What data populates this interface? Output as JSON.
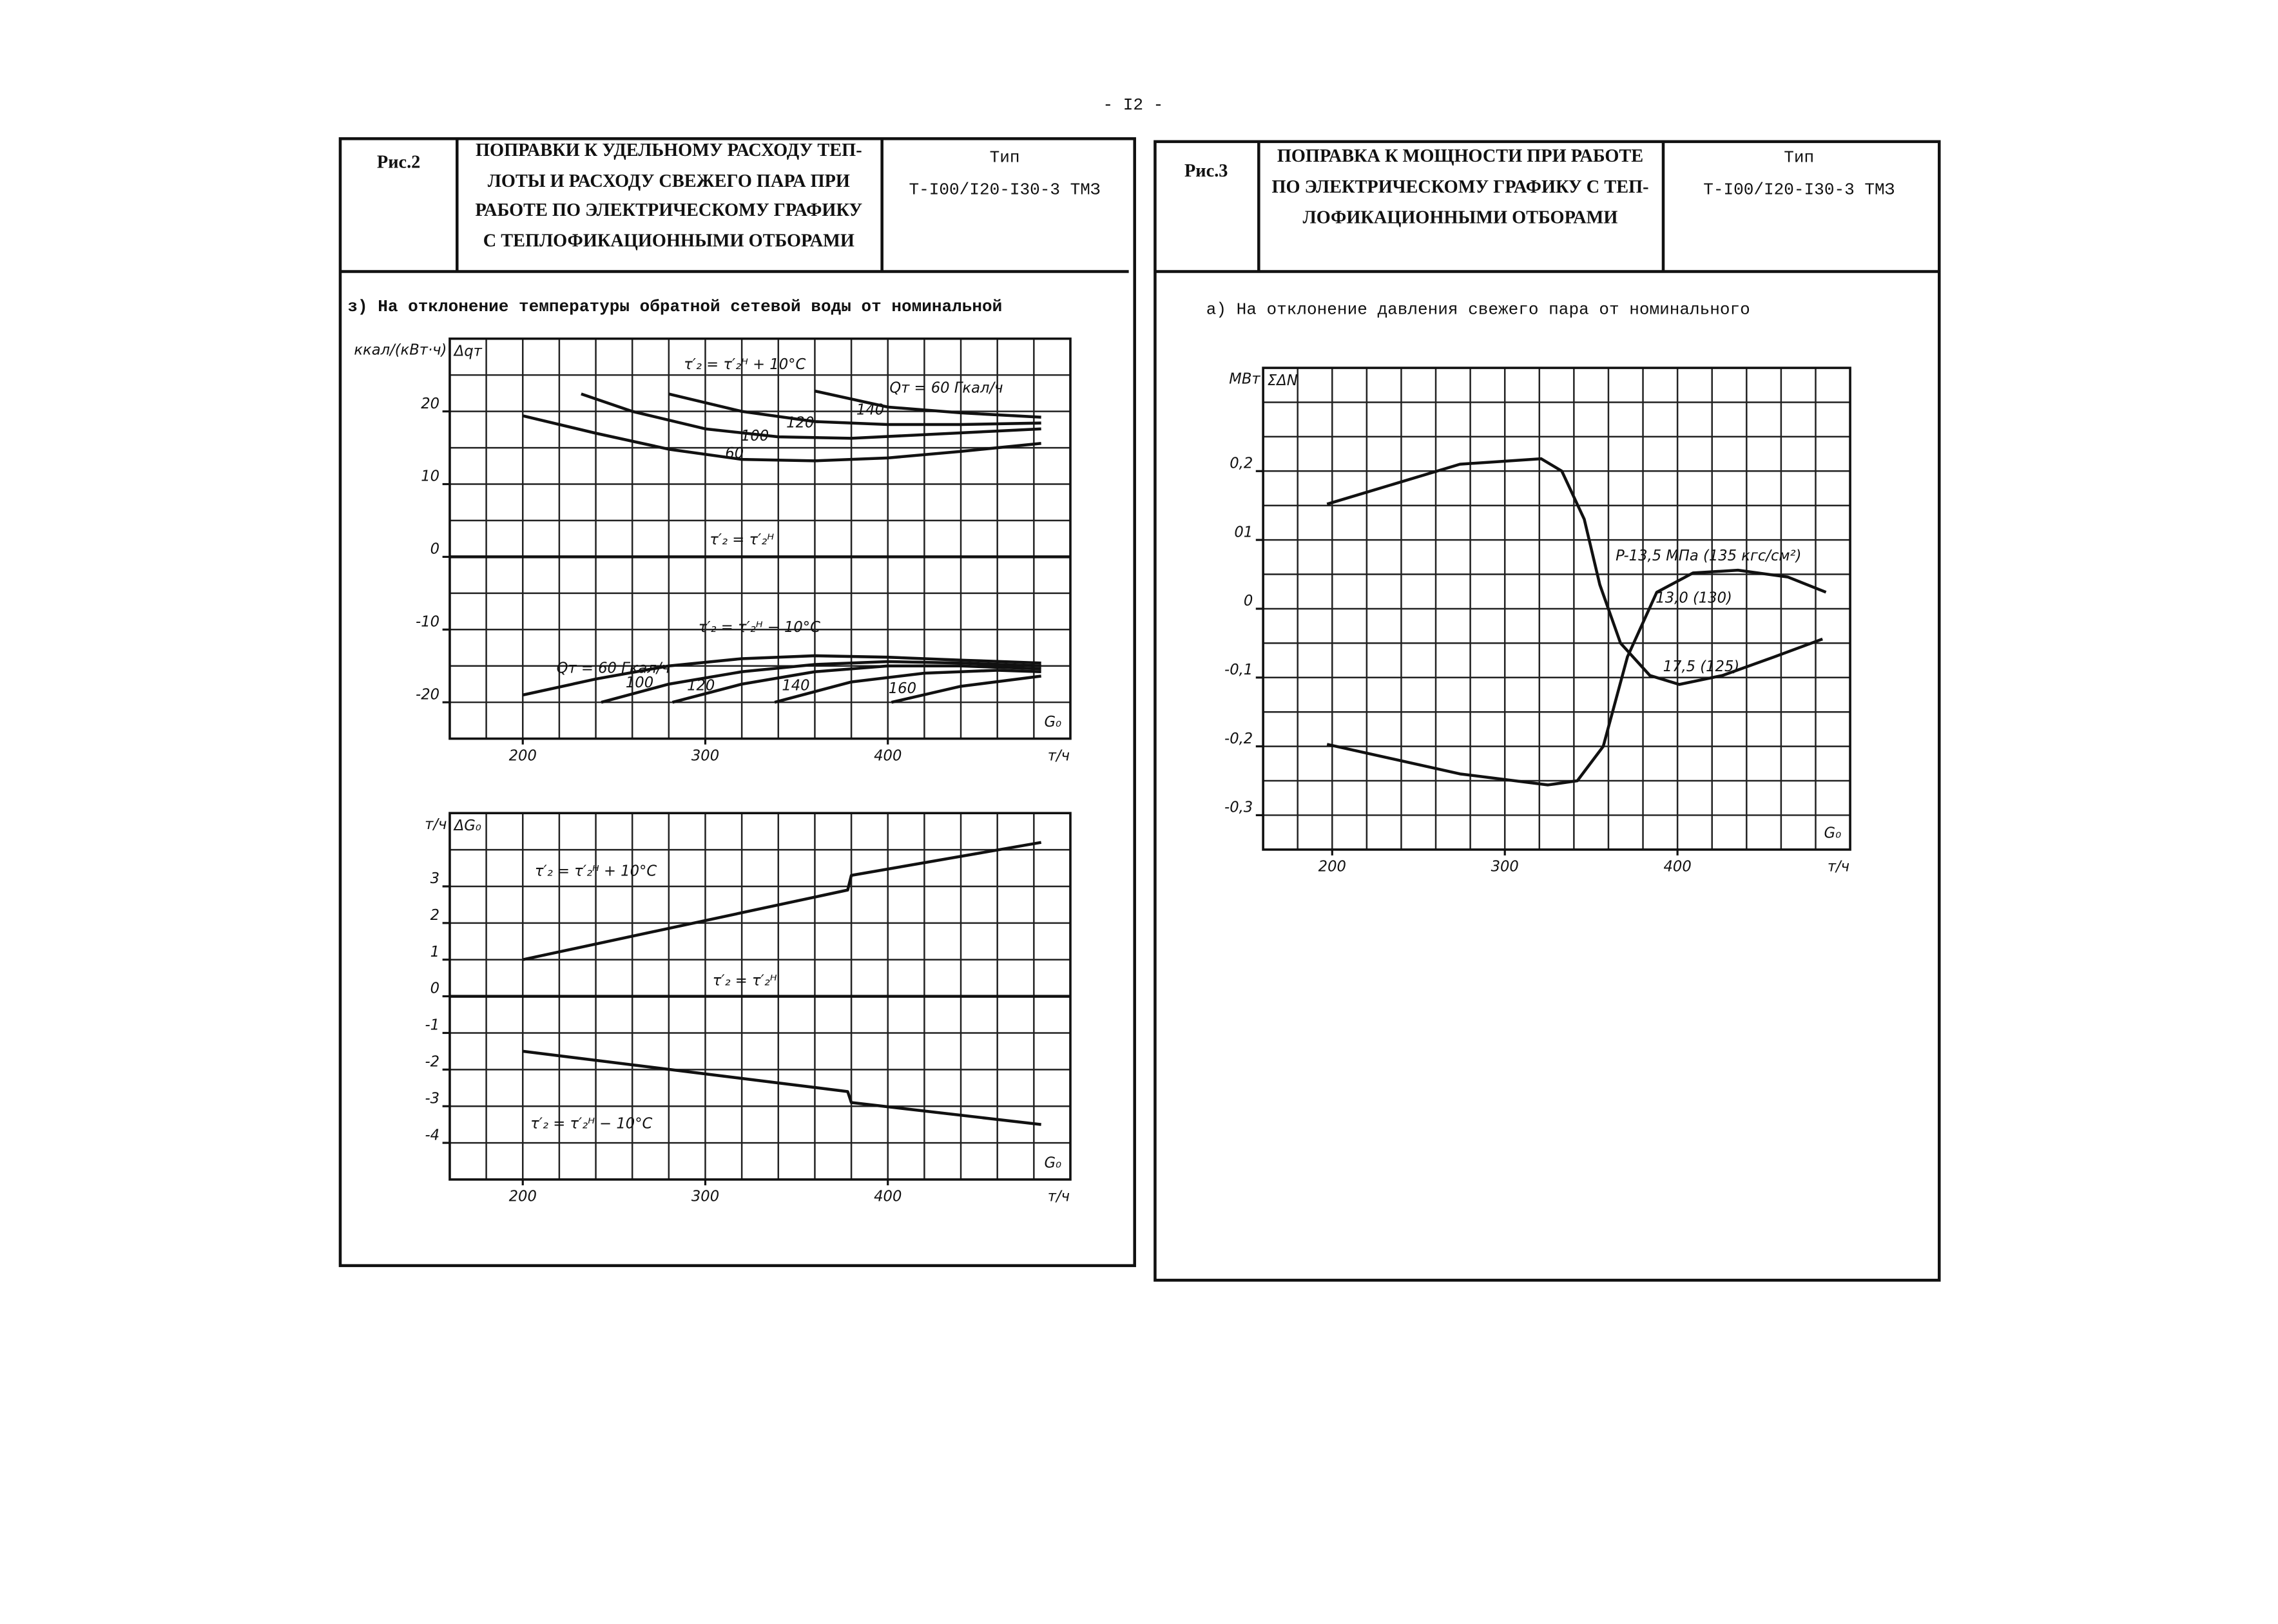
{
  "page_number": "- I2 -",
  "panels": [
    {
      "label": "Рис.2",
      "title": [
        "ПОПРАВКИ К УДЕЛЬНОМУ РАСХОДУ ТЕП-",
        "ЛОТЫ И РАСХОДУ СВЕЖЕГО ПАРА ПРИ",
        "РАБОТЕ ПО ЭЛЕКТРИЧЕСКОМУ ГРАФИКУ",
        "С ТЕПЛОФИКАЦИОННЫМИ ОТБОРАМИ"
      ],
      "type_label": "Тип",
      "type_value": "Т-I00/I20-I30-3 ТМЗ",
      "subtitle": "з) На отклонение температуры обратной сетевой воды от номинальной"
    },
    {
      "label": "Рис.3",
      "title": [
        "ПОПРАВКА К МОЩНОСТИ ПРИ РАБОТЕ",
        "ПО ЭЛЕКТРИЧЕСКОМУ ГРАФИКУ С ТЕП-",
        "ЛОФИКАЦИОННЫМИ ОТБОРАМИ"
      ],
      "type_label": "Тип",
      "type_value": "Т-I00/I20-I30-3 ТМЗ",
      "subtitle": "а) На отклонение давления свежего пара от номинального"
    }
  ],
  "chart_data": [
    {
      "type": "line",
      "ylabel": "Δqт",
      "yunit": "ккал/(кВт·ч)",
      "xlabel": "G₀",
      "xunit": "т/ч",
      "xlim": [
        160,
        500
      ],
      "ylim": [
        -25,
        30
      ],
      "xticks": [
        200,
        300,
        400
      ],
      "yticks": [
        20,
        10,
        0,
        -10,
        -20
      ],
      "grid": true,
      "xgrid": [
        160,
        180,
        200,
        220,
        240,
        260,
        280,
        300,
        320,
        340,
        360,
        380,
        400,
        420,
        440,
        460,
        480,
        500
      ],
      "ygrid": [
        -25,
        -20,
        -15,
        -10,
        -5,
        0,
        5,
        10,
        15,
        20,
        25,
        30
      ],
      "annotations": [
        "τ′₂ = τ′₂ᴴ + 10°C",
        "Qт = 60 Гкал/ч",
        "τ′₂ = τ′₂ᴴ − 10°C"
      ],
      "series": [
        {
          "name": "60",
          "color": "#111111",
          "x": [
            200,
            240,
            280,
            320,
            360,
            400,
            440,
            484
          ],
          "values": [
            19.4,
            17,
            14.8,
            13.4,
            13.2,
            13.6,
            14.5,
            15.6
          ]
        },
        {
          "name": "100",
          "color": "#111111",
          "x": [
            232,
            260,
            300,
            340,
            380,
            420,
            460,
            484
          ],
          "values": [
            22.4,
            20,
            17.6,
            16.5,
            16.3,
            16.8,
            17.3,
            17.6
          ]
        },
        {
          "name": "120",
          "color": "#111111",
          "x": [
            280,
            320,
            360,
            400,
            440,
            484
          ],
          "values": [
            22.4,
            20,
            18.6,
            18.2,
            18.2,
            18.4
          ]
        },
        {
          "name": "140",
          "color": "#111111",
          "x": [
            360,
            400,
            440,
            484
          ],
          "values": [
            22.8,
            20.6,
            19.8,
            19.2
          ]
        },
        {
          "name": "τ′₂ = τ′₂ᴴ",
          "color": "#111111",
          "x": [
            160,
            500
          ],
          "values": [
            0,
            0
          ]
        },
        {
          "name": "Qт = 60 Гкал/ч",
          "color": "#111111",
          "x": [
            200,
            240,
            280,
            320,
            360,
            400,
            440,
            484
          ],
          "values": [
            -19,
            -16.8,
            -15,
            -14,
            -13.6,
            -13.8,
            -14.2,
            -14.6
          ]
        },
        {
          "name": "100",
          "color": "#111111",
          "x": [
            243,
            280,
            320,
            360,
            400,
            440,
            484
          ],
          "values": [
            -20,
            -17.5,
            -15.8,
            -14.8,
            -14.4,
            -14.6,
            -15
          ]
        },
        {
          "name": "120",
          "color": "#111111",
          "x": [
            282,
            320,
            360,
            400,
            440,
            484
          ],
          "values": [
            -20,
            -17.5,
            -15.8,
            -15,
            -15,
            -15.4
          ]
        },
        {
          "name": "140",
          "color": "#111111",
          "x": [
            338,
            380,
            420,
            460,
            484
          ],
          "values": [
            -20,
            -17.2,
            -16,
            -15.6,
            -15.8
          ]
        },
        {
          "name": "160",
          "color": "#111111",
          "x": [
            402,
            440,
            484
          ],
          "values": [
            -20,
            -17.8,
            -16.4
          ]
        }
      ]
    },
    {
      "type": "line",
      "ylabel": "ΔG₀",
      "yunit": "т/ч",
      "xlabel": "G₀",
      "xunit": "т/ч",
      "xlim": [
        160,
        500
      ],
      "ylim": [
        -5,
        5
      ],
      "xticks": [
        200,
        300,
        400
      ],
      "yticks": [
        3,
        2,
        1,
        0,
        -1,
        -2,
        -3,
        -4
      ],
      "grid": true,
      "xgrid": [
        160,
        180,
        200,
        220,
        240,
        260,
        280,
        300,
        320,
        340,
        360,
        380,
        400,
        420,
        440,
        460,
        480,
        500
      ],
      "ygrid": [
        -5,
        -4,
        -3,
        -2,
        -1,
        0,
        1,
        2,
        3,
        4,
        5
      ],
      "series": [
        {
          "name": "τ′₂ = τ′₂ᴴ + 10°C",
          "color": "#111111",
          "x": [
            200,
            378,
            380,
            484
          ],
          "values": [
            1.0,
            2.9,
            3.3,
            4.2
          ]
        },
        {
          "name": "τ′₂ = τ′₂ᴴ",
          "color": "#111111",
          "x": [
            160,
            500
          ],
          "values": [
            0,
            0
          ]
        },
        {
          "name": "τ′₂ = τ′₂ᴴ − 10°C",
          "color": "#111111",
          "x": [
            200,
            378,
            380,
            484
          ],
          "values": [
            -1.5,
            -2.6,
            -2.9,
            -3.5
          ]
        }
      ]
    },
    {
      "type": "line",
      "ylabel": "ΣΔN",
      "yunit": "МВт",
      "xlabel": "G₀",
      "xunit": "т/ч",
      "xlim": [
        160,
        500
      ],
      "ylim": [
        -0.35,
        0.35
      ],
      "xticks": [
        200,
        300,
        400
      ],
      "yticks": [
        {
          "value": 0.2,
          "label": "0,2"
        },
        {
          "value": 0.1,
          "label": "01"
        },
        0,
        {
          "value": -0.1,
          "label": "-0,1"
        },
        {
          "value": -0.2,
          "label": "-0,2"
        },
        {
          "value": -0.3,
          "label": "-0,3"
        }
      ],
      "grid": true,
      "xgrid": [
        160,
        180,
        200,
        220,
        240,
        260,
        280,
        300,
        320,
        340,
        360,
        380,
        400,
        420,
        440,
        460,
        480,
        500
      ],
      "ygrid": [
        -0.35,
        -0.3,
        -0.25,
        -0.2,
        -0.15,
        -0.1,
        -0.05,
        0,
        0.05,
        0.1,
        0.15,
        0.2,
        0.25,
        0.3,
        0.35
      ],
      "annotations": [
        "P-13,5 МПа (135 кгс/см²)"
      ],
      "series": [
        {
          "name": "17,5 (125)",
          "color": "#111111",
          "x": [
            197,
            274,
            321,
            333,
            346,
            355,
            367,
            384,
            401,
            426,
            456,
            484
          ],
          "values": [
            0.152,
            0.21,
            0.218,
            0.2,
            0.13,
            0.035,
            -0.05,
            -0.097,
            -0.11,
            -0.097,
            -0.07,
            -0.044
          ]
        },
        {
          "name": "13,0 (130)",
          "color": "#111111",
          "x": [
            197,
            274,
            325,
            342,
            357,
            371,
            388,
            409,
            435,
            464,
            486
          ],
          "values": [
            -0.197,
            -0.24,
            -0.256,
            -0.25,
            -0.2,
            -0.07,
            0.024,
            0.052,
            0.056,
            0.046,
            0.024
          ]
        }
      ]
    }
  ]
}
